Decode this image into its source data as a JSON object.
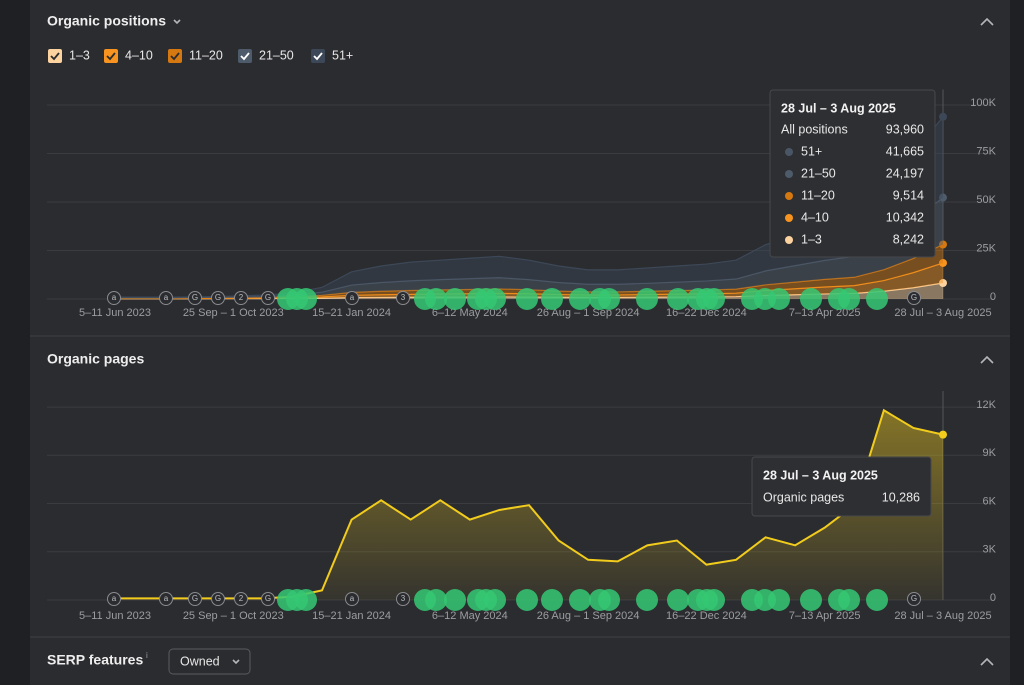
{
  "sections": {
    "positions_title": "Organic positions",
    "pages_title": "Organic pages",
    "serp_title": "SERP features",
    "serp_info": "i",
    "serp_filter": "Owned"
  },
  "chart_data": [
    {
      "type": "area",
      "stacked": true,
      "grid": true,
      "categories": [
        "5–11 Jun 2023",
        null,
        null,
        null,
        "25 Sep – 1 Oct 2023",
        null,
        null,
        null,
        "15–21 Jan 2024",
        null,
        null,
        null,
        "6–12 May 2024",
        null,
        null,
        null,
        "26 Aug – 1 Sep 2024",
        null,
        null,
        null,
        "16–22 Dec 2024",
        null,
        null,
        null,
        "7–13 Apr 2025",
        null,
        null,
        null,
        "28 Jul – 3 Aug 2025"
      ],
      "series": [
        {
          "name": "1–3",
          "color": "#fcd29f",
          "values": [
            100,
            100,
            100,
            100,
            150,
            200,
            300,
            400,
            700,
            800,
            900,
            1000,
            1000,
            1100,
            1000,
            900,
            800,
            800,
            900,
            1000,
            1100,
            1200,
            1800,
            2200,
            2600,
            2900,
            4000,
            5800,
            8242
          ]
        },
        {
          "name": "4–10",
          "color": "#f7931e",
          "values": [
            150,
            150,
            150,
            200,
            200,
            250,
            400,
            700,
            1200,
            1400,
            1500,
            1600,
            1700,
            1800,
            1700,
            1400,
            1300,
            1300,
            1400,
            1500,
            1600,
            1800,
            2600,
            3100,
            3600,
            4000,
            5500,
            7800,
            10342
          ]
        },
        {
          "name": "11–20",
          "color": "#d5780f",
          "values": [
            150,
            150,
            150,
            200,
            250,
            300,
            400,
            800,
            1500,
            1800,
            2000,
            2100,
            2200,
            2300,
            2100,
            1800,
            1600,
            1600,
            1700,
            1800,
            1900,
            2100,
            2900,
            3400,
            3900,
            4300,
            5600,
            7300,
            9514
          ]
        },
        {
          "name": "21–50",
          "color": "#4e5b6b",
          "values": [
            250,
            250,
            250,
            300,
            400,
            500,
            800,
            1600,
            3800,
            4500,
            5000,
            5300,
            5600,
            5800,
            5200,
            4400,
            3900,
            3900,
            4100,
            4400,
            4700,
            5200,
            7200,
            8500,
            9800,
            10800,
            14000,
            19500,
            24197
          ]
        },
        {
          "name": "51+",
          "color": "#3c4858",
          "values": [
            350,
            350,
            350,
            400,
            500,
            750,
            1100,
            2500,
            6800,
            8500,
            9600,
            10000,
            10500,
            11000,
            10000,
            8500,
            7400,
            7400,
            7900,
            8300,
            8700,
            9700,
            13500,
            15800,
            18100,
            20000,
            25900,
            34600,
            41665
          ]
        }
      ],
      "ylim": [
        0,
        108000
      ],
      "yticks": [
        0,
        {
          "value": 25000,
          "label": "25K"
        },
        {
          "value": 50000,
          "label": "50K"
        },
        {
          "value": 75000,
          "label": "75K"
        },
        {
          "value": 100000,
          "label": "100K"
        }
      ],
      "event_icons": [
        "a",
        "a",
        "G",
        "G",
        "2",
        "G",
        "a",
        "3",
        "G"
      ],
      "tooltip": {
        "total_label": "All positions",
        "total": "93,960",
        "values": [
          "8,242",
          "10,342",
          "9,514",
          "24,197",
          "41,665"
        ]
      }
    },
    {
      "type": "area",
      "stacked": false,
      "grid": true,
      "categories": [
        "5–11 Jun 2023",
        null,
        null,
        null,
        "25 Sep – 1 Oct 2023",
        null,
        null,
        null,
        "15–21 Jan 2024",
        null,
        null,
        null,
        "6–12 May 2024",
        null,
        null,
        null,
        "26 Aug – 1 Sep 2024",
        null,
        null,
        null,
        "16–22 Dec 2024",
        null,
        null,
        null,
        "7–13 Apr 2025",
        null,
        null,
        null,
        "28 Jul – 3 Aug 2025"
      ],
      "series": [
        {
          "name": "Organic pages",
          "color": "#f2cc1d",
          "values": [
            100,
            100,
            100,
            100,
            100,
            100,
            200,
            600,
            5000,
            6200,
            5000,
            6200,
            5000,
            5600,
            5900,
            3700,
            2500,
            2400,
            3400,
            3700,
            2200,
            2500,
            3900,
            3400,
            4500,
            5900,
            11800,
            10700,
            10286
          ]
        }
      ],
      "ylim": [
        0,
        13000
      ],
      "yticks": [
        0,
        {
          "value": 3000,
          "label": "3K"
        },
        {
          "value": 6000,
          "label": "6K"
        },
        {
          "value": 9000,
          "label": "9K"
        },
        {
          "value": 12000,
          "label": "12K"
        }
      ],
      "event_icons": [
        "a",
        "a",
        "G",
        "G",
        "2",
        "G",
        "a",
        "3",
        "G"
      ],
      "tooltip": {
        "values": [
          "10,286"
        ]
      }
    }
  ]
}
